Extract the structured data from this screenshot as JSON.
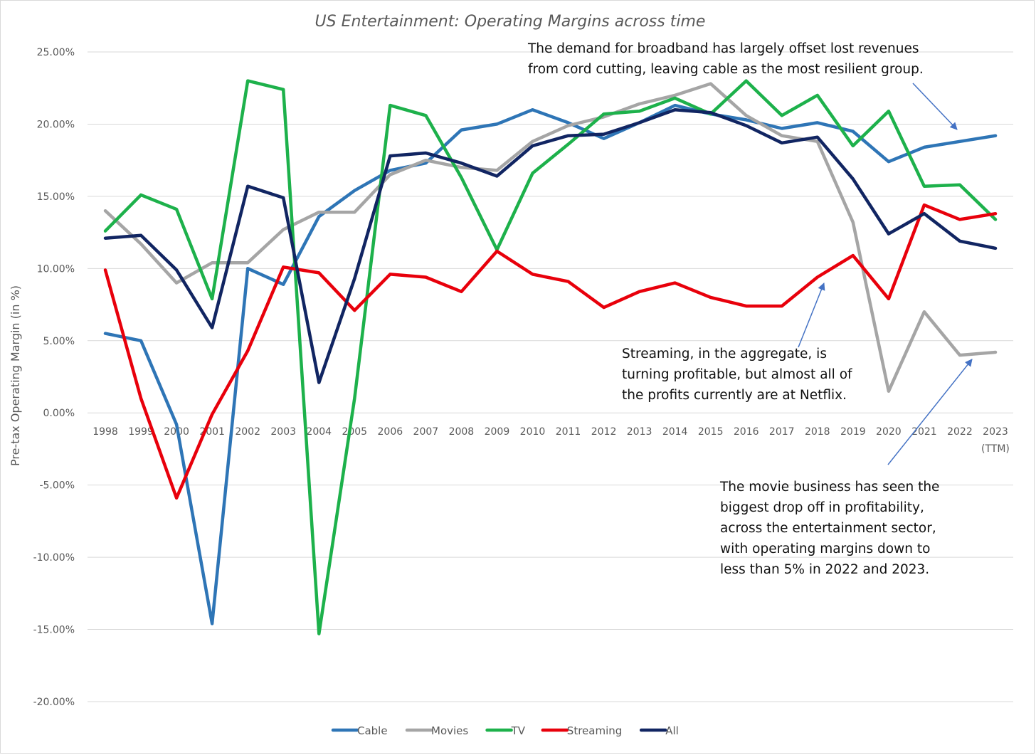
{
  "chart_data": {
    "type": "line",
    "title": "US Entertainment: Operating Margins across time",
    "xlabel": "",
    "ylabel": "Pre-tax Operating Margin (in %)",
    "ylim": [
      -20,
      25
    ],
    "ytick_step": 5,
    "ytick_labels": [
      "25.00%",
      "20.00%",
      "15.00%",
      "10.00%",
      "5.00%",
      "0.00%",
      "-5.00%",
      "-10.00%",
      "-15.00%",
      "-20.00%"
    ],
    "categories": [
      "1998",
      "1999",
      "2000",
      "2001",
      "2002",
      "2003",
      "2004",
      "2005",
      "2006",
      "2007",
      "2008",
      "2009",
      "2010",
      "2011",
      "2012",
      "2013",
      "2014",
      "2015",
      "2016",
      "2017",
      "2018",
      "2019",
      "2020",
      "2021",
      "2022",
      "2023"
    ],
    "last_category_note": "(TTM)",
    "grid": true,
    "legend_position": "bottom",
    "series": [
      {
        "name": "Cable",
        "color": "#2E75B6",
        "values": [
          5.5,
          5.0,
          -0.8,
          -14.6,
          10.0,
          8.9,
          13.6,
          15.4,
          16.8,
          17.3,
          19.6,
          20.0,
          21.0,
          20.1,
          19.0,
          20.1,
          21.3,
          20.7,
          20.3,
          19.7,
          20.1,
          19.5,
          17.4,
          18.4,
          18.8,
          19.2
        ]
      },
      {
        "name": "Movies",
        "color": "#A5A5A5",
        "values": [
          14.0,
          11.7,
          9.0,
          10.4,
          10.4,
          12.7,
          13.9,
          13.9,
          16.5,
          17.5,
          17.0,
          16.8,
          18.8,
          19.9,
          20.5,
          21.4,
          22.0,
          22.8,
          20.6,
          19.2,
          18.8,
          13.2,
          1.5,
          7.0,
          4.0,
          4.2
        ]
      },
      {
        "name": "TV",
        "color": "#1DB14B",
        "values": [
          12.6,
          15.1,
          14.1,
          7.9,
          23.0,
          22.4,
          -15.3,
          1.0,
          21.3,
          20.6,
          16.3,
          11.3,
          16.6,
          18.6,
          20.7,
          20.9,
          21.8,
          20.7,
          23.0,
          20.6,
          22.0,
          18.5,
          20.9,
          15.7,
          15.8,
          13.4
        ]
      },
      {
        "name": "Streaming",
        "color": "#E8000B",
        "values": [
          9.9,
          1.0,
          -5.9,
          -0.1,
          4.3,
          10.1,
          9.7,
          7.1,
          9.6,
          9.4,
          8.4,
          11.2,
          9.6,
          9.1,
          7.3,
          8.4,
          9.0,
          8.0,
          7.4,
          7.4,
          9.4,
          10.9,
          7.9,
          14.4,
          13.4,
          13.8
        ]
      },
      {
        "name": "All",
        "color": "#112562",
        "values": [
          12.1,
          12.3,
          9.9,
          5.9,
          15.7,
          14.9,
          2.1,
          9.3,
          17.8,
          18.0,
          17.3,
          16.4,
          18.5,
          19.2,
          19.3,
          20.1,
          21.0,
          20.8,
          19.9,
          18.7,
          19.1,
          16.2,
          12.4,
          13.8,
          11.9,
          11.4
        ]
      }
    ],
    "annotations": [
      {
        "lines": [
          "The demand for broadband has largely offset lost revenues",
          "from cord cutting, leaving cable as the most resilient group."
        ],
        "points_to": "Cable"
      },
      {
        "lines": [
          "Streaming, in the aggregate, is",
          "turning profitable, but almost all of",
          "the profits currently are at Netflix."
        ],
        "points_to": "Streaming"
      },
      {
        "lines": [
          "The movie business has seen the",
          "biggest drop off in profitability,",
          "across the entertainment sector,",
          "with operating margins down to",
          "less than 5% in 2022 and 2023."
        ],
        "points_to": "Movies"
      }
    ]
  }
}
